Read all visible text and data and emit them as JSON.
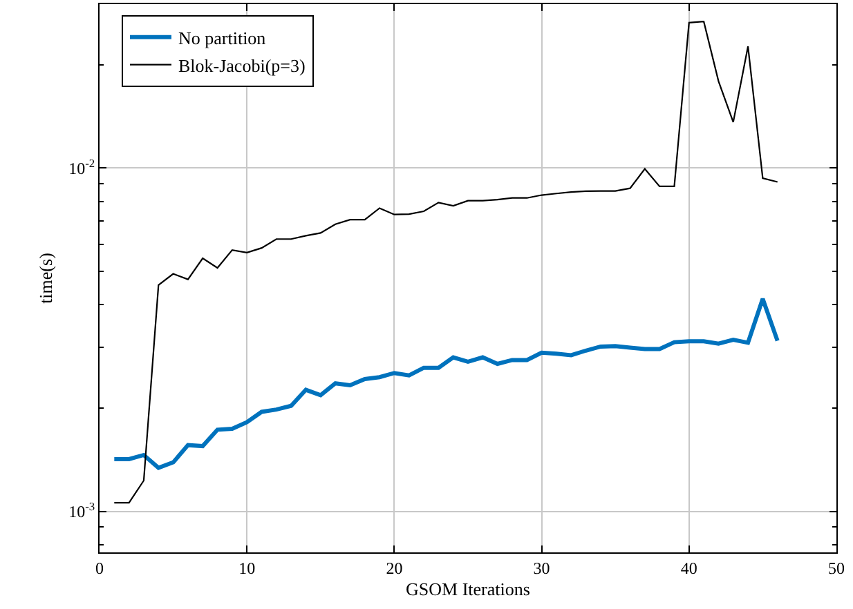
{
  "chart_data": {
    "type": "line",
    "xlabel": "GSOM Iterations",
    "ylabel": "time(s)",
    "x": [
      1,
      2,
      3,
      4,
      5,
      6,
      7,
      8,
      9,
      10,
      11,
      12,
      13,
      14,
      15,
      16,
      17,
      18,
      19,
      20,
      21,
      22,
      23,
      24,
      25,
      26,
      27,
      28,
      29,
      30,
      31,
      32,
      33,
      34,
      35,
      36,
      37,
      38,
      39,
      40,
      41,
      42,
      43,
      44,
      45,
      46
    ],
    "series": [
      {
        "name": "No partition",
        "color": "#0072bd",
        "values": [
          0.00142,
          0.00142,
          0.00146,
          0.00134,
          0.00139,
          0.00156,
          0.00155,
          0.00173,
          0.00174,
          0.00182,
          0.00195,
          0.00198,
          0.00203,
          0.00226,
          0.00218,
          0.00236,
          0.00233,
          0.00243,
          0.00246,
          0.00253,
          0.00249,
          0.00262,
          0.00262,
          0.00281,
          0.00273,
          0.00281,
          0.00269,
          0.00276,
          0.00276,
          0.0029,
          0.00288,
          0.00285,
          0.00294,
          0.00302,
          0.00303,
          0.003,
          0.00297,
          0.00297,
          0.00311,
          0.00313,
          0.00313,
          0.00308,
          0.00316,
          0.0031,
          0.00416,
          0.00314
        ]
      },
      {
        "name": "Blok-Jacobi(p=3)",
        "color": "#000000",
        "values": [
          0.00106,
          0.00106,
          0.00123,
          0.00456,
          0.00492,
          0.00474,
          0.00546,
          0.00512,
          0.00577,
          0.00567,
          0.00585,
          0.00621,
          0.00621,
          0.00635,
          0.00647,
          0.00686,
          0.00707,
          0.00707,
          0.00764,
          0.00732,
          0.00734,
          0.00748,
          0.00793,
          0.00776,
          0.00803,
          0.00803,
          0.00809,
          0.00818,
          0.00818,
          0.00834,
          0.00843,
          0.00851,
          0.00856,
          0.00857,
          0.00857,
          0.00873,
          0.00994,
          0.00884,
          0.00884,
          0.0265,
          0.0267,
          0.0179,
          0.0136,
          0.0226,
          0.00934,
          0.00911
        ]
      }
    ],
    "xlim": [
      0,
      50
    ],
    "xticks": [
      0,
      10,
      20,
      30,
      40,
      50
    ],
    "ylim": [
      0.00076,
      0.03
    ],
    "yticks": [
      {
        "value": 0.0008,
        "label": null
      },
      {
        "value": 0.0009,
        "label": null
      },
      {
        "value": 0.001,
        "label": "10$^{-3}$"
      },
      {
        "value": 0.002,
        "label": null
      },
      {
        "value": 0.003,
        "label": null
      },
      {
        "value": 0.004,
        "label": null
      },
      {
        "value": 0.005,
        "label": null
      },
      {
        "value": 0.006,
        "label": null
      },
      {
        "value": 0.007,
        "label": null
      },
      {
        "value": 0.008,
        "label": null
      },
      {
        "value": 0.009,
        "label": null
      },
      {
        "value": 0.01,
        "label": "10$^{-2}$"
      },
      {
        "value": 0.02,
        "label": null
      }
    ],
    "log": true,
    "grid": true,
    "legend": "top left",
    "marker": "none",
    "line_style": "solid"
  }
}
